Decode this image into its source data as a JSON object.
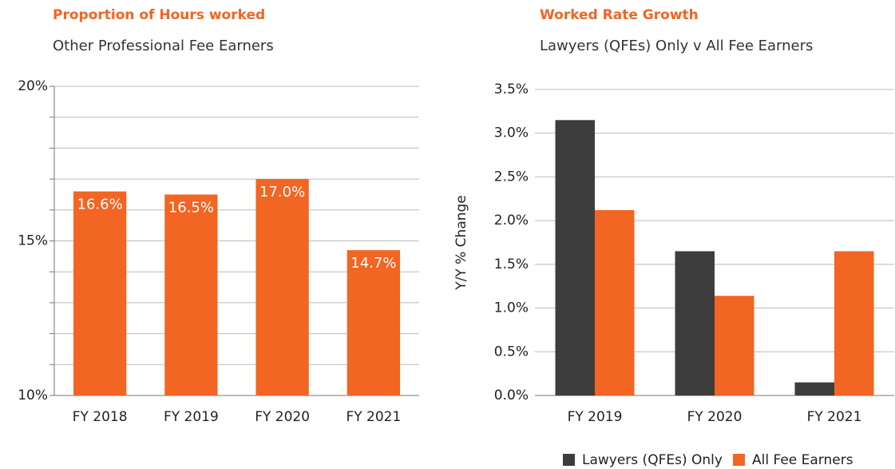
{
  "chart_data": [
    {
      "type": "bar",
      "title": "Proportion of Hours worked",
      "subtitle": "Other Professional Fee Earners",
      "categories": [
        "FY 2018",
        "FY 2019",
        "FY 2020",
        "FY 2021"
      ],
      "values": [
        16.6,
        16.5,
        17.0,
        14.7
      ],
      "value_labels": [
        "16.6%",
        "16.5%",
        "17.0%",
        "14.7%"
      ],
      "color": "#f26522",
      "ylim": [
        10,
        20
      ],
      "yticks": [
        {
          "value": 10,
          "label": "10%"
        },
        {
          "value": 15,
          "label": "15%"
        },
        {
          "value": 20,
          "label": "20%"
        }
      ],
      "minor_yticks": [
        11,
        12,
        13,
        14,
        16,
        17,
        18,
        19
      ],
      "grid": true
    },
    {
      "type": "bar",
      "title": "Worked Rate Growth",
      "subtitle": "Lawyers (QFEs) Only v All Fee Earners",
      "ylabel": "Y/Y % Change",
      "categories": [
        "FY 2019",
        "FY 2020",
        "FY 2021"
      ],
      "series": [
        {
          "name": "Lawyers (QFEs) Only",
          "color": "#3d3d3d",
          "values": [
            3.15,
            1.65,
            0.15
          ]
        },
        {
          "name": "All Fee Earners",
          "color": "#f26522",
          "values": [
            2.12,
            1.14,
            1.65
          ]
        }
      ],
      "ylim": [
        0,
        3.5
      ],
      "yticks": [
        {
          "value": 0,
          "label": "0.0%"
        },
        {
          "value": 0.5,
          "label": "0.5%"
        },
        {
          "value": 1,
          "label": "1.0%"
        },
        {
          "value": 1.5,
          "label": "1.5%"
        },
        {
          "value": 2,
          "label": "2.0%"
        },
        {
          "value": 2.5,
          "label": "2.5%"
        },
        {
          "value": 3,
          "label": "3.0%"
        },
        {
          "value": 3.5,
          "label": "3.5%"
        }
      ],
      "grid": true,
      "legend": "bottom-right"
    }
  ]
}
